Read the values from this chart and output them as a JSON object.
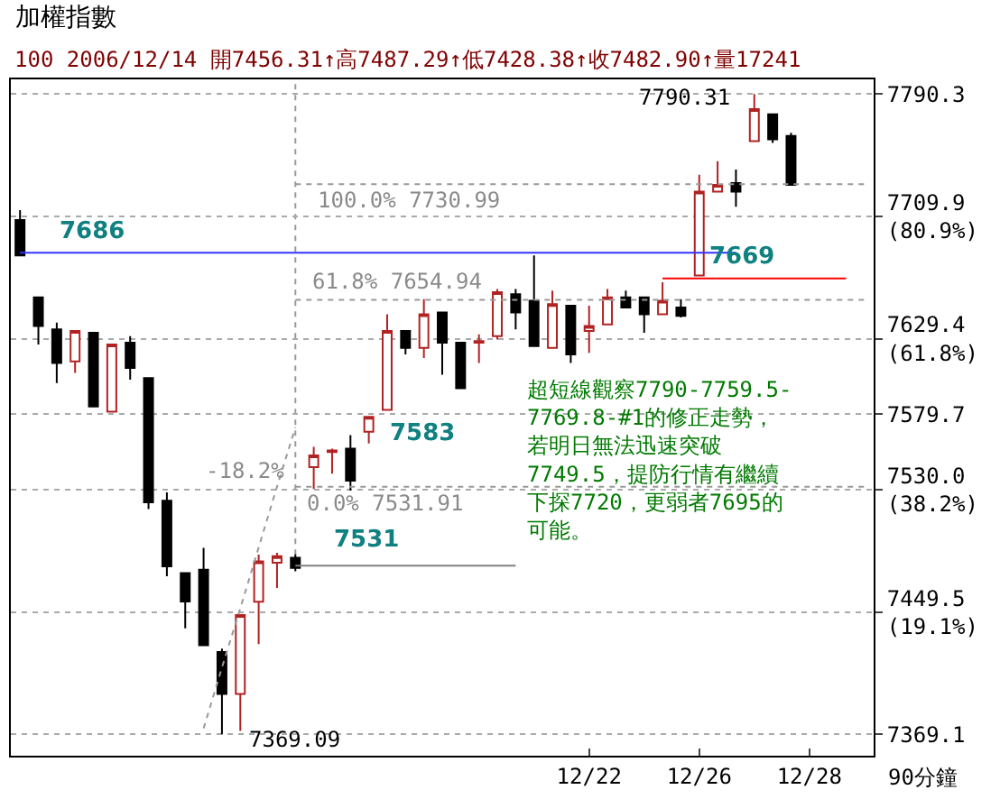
{
  "chart_data": {
    "type": "candlestick",
    "title": "加權指數",
    "subtitle": "100 2006/12/14 開7456.31↑高7487.29↑低7428.38↑收7482.90↑量17241",
    "xlabel": "90分鐘",
    "categories": [
      null,
      null,
      null,
      null,
      null,
      null,
      null,
      null,
      null,
      null,
      null,
      null,
      null,
      null,
      null,
      null,
      null,
      null,
      null,
      null,
      null,
      null,
      null,
      null,
      null,
      null,
      null,
      null,
      null,
      null,
      null,
      "12/22",
      null,
      null,
      null,
      null,
      null,
      "12/26",
      null,
      null,
      null,
      null,
      null,
      "12/28",
      null,
      null,
      null
    ],
    "ohlc": [
      [
        7707.4,
        7714.0,
        7684.2,
        7684.2
      ],
      [
        7656.5,
        7656.5,
        7625.6,
        7637.7
      ],
      [
        7635.5,
        7639.9,
        7600.2,
        7613.4
      ],
      [
        7614.5,
        7634.4,
        7606.8,
        7634.4
      ],
      [
        7633.3,
        7633.3,
        7584.7,
        7584.7
      ],
      [
        7581.4,
        7625.6,
        7581.4,
        7625.6
      ],
      [
        7626.7,
        7631.1,
        7602.4,
        7610.1
      ],
      [
        7603.5,
        7603.5,
        7517.2,
        7521.7
      ],
      [
        7522.8,
        7528.3,
        7473.0,
        7479.6
      ],
      [
        7475.2,
        7475.2,
        7438.8,
        7456.5
      ],
      [
        7477.4,
        7491.8,
        7427.7,
        7427.7
      ],
      [
        7423.3,
        7425.5,
        7369.09,
        7395.6
      ],
      [
        7395.6,
        7447.6,
        7371.3,
        7447.6
      ],
      [
        7456.31,
        7487.29,
        7428.38,
        7482.9
      ],
      [
        7481.9,
        7488.5,
        7465.3,
        7486.3
      ],
      [
        7485.2,
        7487.4,
        7476.3,
        7478.5
      ],
      [
        7544.9,
        7558.2,
        7530.5,
        7552.6
      ],
      [
        7554.8,
        7557.0,
        7540.5,
        7555.9
      ],
      [
        7557.0,
        7565.9,
        7529.4,
        7536.0
      ],
      [
        7568.1,
        7578.0,
        7560.4,
        7578.0
      ],
      [
        7582.5,
        7645.5,
        7582.5,
        7634.4
      ],
      [
        7634.4,
        7634.4,
        7619.0,
        7623.4
      ],
      [
        7623.4,
        7655.4,
        7616.7,
        7645.5
      ],
      [
        7646.6,
        7646.6,
        7605.7,
        7626.7
      ],
      [
        7626.7,
        7626.7,
        7596.8,
        7596.8
      ],
      [
        7626.7,
        7632.2,
        7613.4,
        7627.8
      ],
      [
        7631.1,
        7662.1,
        7628.9,
        7659.9
      ],
      [
        7658.7,
        7662.1,
        7635.5,
        7646.6
      ],
      [
        7654.3,
        7684.2,
        7624.5,
        7624.5
      ],
      [
        7623.4,
        7661.0,
        7623.4,
        7652.1
      ],
      [
        7651.0,
        7651.0,
        7613.4,
        7619.0
      ],
      [
        7634.4,
        7651.0,
        7620.1,
        7637.7
      ],
      [
        7638.8,
        7662.1,
        7638.8,
        7656.5
      ],
      [
        7656.5,
        7661.0,
        7649.9,
        7649.9
      ],
      [
        7656.5,
        7656.5,
        7633.3,
        7645.5
      ],
      [
        7645.5,
        7666.5,
        7645.5,
        7654.3
      ],
      [
        7649.9,
        7655.4,
        7643.3,
        7644.4
      ],
      [
        7670.9,
        7737.2,
        7670.9,
        7726.2
      ],
      [
        7726.2,
        7746.1,
        7726.2,
        7730.6
      ],
      [
        7731.7,
        7740.6,
        7716.2,
        7726.2
      ],
      [
        7759.3,
        7790.31,
        7759.3,
        7780.4
      ],
      [
        7777.0,
        7777.0,
        7758.2,
        7760.5
      ],
      [
        7762.7,
        7764.9,
        7730.6,
        7730.6
      ],
      null,
      null,
      null,
      null
    ],
    "colors": [
      "#000000",
      "#000000",
      "#000000",
      "#b22222",
      "#000000",
      "#b22222",
      "#000000",
      "#000000",
      "#000000",
      "#000000",
      "#000000",
      "#000000",
      "#b22222",
      "#b22222",
      "#b22222",
      "#000000",
      "#b22222",
      "#b22222",
      "#000000",
      "#b22222",
      "#b22222",
      "#000000",
      "#b22222",
      "#000000",
      "#000000",
      "#b22222",
      "#b22222",
      "#000000",
      "#000000",
      "#b22222",
      "#000000",
      "#b22222",
      "#b22222",
      "#000000",
      "#000000",
      "#b22222",
      "#000000",
      "#b22222",
      "#b22222",
      "#000000",
      "#b22222",
      "#000000",
      "#000000",
      null,
      null,
      null,
      null
    ],
    "series": [
      {
        "type": "line",
        "values": [
          7686,
          7686,
          7686,
          7686,
          7686,
          7686,
          7686,
          7686,
          7686,
          7686,
          7686,
          7686,
          7686,
          7686,
          7686,
          7686,
          7686,
          7686,
          7686,
          7686,
          7686,
          7686,
          7686,
          7686,
          7686,
          7686,
          7686,
          7686,
          7686,
          7686,
          7686,
          7686,
          7686,
          7686,
          7686,
          7686,
          7686,
          7686,
          7686,
          7686,
          null,
          null,
          null,
          null,
          null,
          null,
          null
        ],
        "color": "#3333ff",
        "line_style": "solid"
      },
      {
        "type": "line",
        "values": [
          null,
          null,
          null,
          null,
          null,
          null,
          null,
          null,
          null,
          null,
          null,
          null,
          null,
          null,
          null,
          null,
          null,
          null,
          null,
          null,
          null,
          null,
          null,
          null,
          null,
          null,
          null,
          null,
          null,
          null,
          null,
          null,
          null,
          null,
          null,
          7669,
          7669,
          7669,
          7669,
          7669,
          7669,
          7669,
          7669,
          7669,
          7669,
          7669,
          null
        ],
        "color": "#ff0000",
        "line_style": "solid"
      },
      {
        "type": "line",
        "values": [
          null,
          null,
          null,
          null,
          null,
          null,
          null,
          null,
          null,
          null,
          null,
          null,
          null,
          null,
          null,
          7731,
          7731,
          7731,
          7731,
          7731,
          7731,
          7731,
          7731,
          7731,
          7731,
          7731,
          7731,
          7731,
          7731,
          7731,
          7731,
          7731,
          7731,
          7731,
          7731,
          7731,
          7731,
          7731,
          7731,
          7731,
          7731,
          7731,
          7731,
          7731,
          7731,
          7731,
          7731
        ],
        "color": "#999999",
        "line_style": "dotted"
      },
      {
        "type": "line",
        "values": [
          null,
          null,
          null,
          null,
          null,
          null,
          null,
          null,
          null,
          null,
          null,
          null,
          null,
          null,
          null,
          7655,
          7655,
          7655,
          7655,
          7655,
          7655,
          7655,
          7655,
          7655,
          7655,
          7655,
          7655,
          7655,
          7655,
          7655,
          7655,
          7655,
          7655,
          7655,
          7655,
          7655,
          7655,
          7655,
          7655,
          7655,
          7655,
          7655,
          7655,
          7655,
          7655,
          7655,
          7655
        ],
        "color": "#999999",
        "line_style": "dotted"
      },
      {
        "type": "line",
        "values": [
          null,
          null,
          null,
          null,
          null,
          null,
          null,
          null,
          null,
          null,
          null,
          null,
          null,
          null,
          null,
          7532,
          7532,
          7532,
          7532,
          7532,
          7532,
          7532,
          7532,
          7532,
          7532,
          7532,
          7532,
          7532,
          7532,
          7532,
          7532,
          7532,
          7532,
          7532,
          7532,
          7532,
          7532,
          7532,
          7532,
          7532,
          7532,
          7532,
          7532,
          7532,
          7532,
          7532,
          7532
        ],
        "color": "#999999",
        "line_style": "dotted"
      },
      {
        "type": "line",
        "values": [
          null,
          null,
          null,
          null,
          null,
          null,
          null,
          null,
          null,
          null,
          7373,
          7413,
          7452,
          7492,
          7532,
          7571,
          null,
          null,
          null,
          null,
          null,
          null,
          null,
          null,
          null,
          null,
          null,
          null,
          null,
          null,
          null,
          null,
          null,
          null,
          null,
          null,
          null,
          null,
          null,
          null,
          null,
          null,
          null,
          null,
          null,
          null,
          null
        ],
        "color": "#999999",
        "line_style": "dotted"
      },
      {
        "type": "line",
        "values": [
          null,
          null,
          null,
          null,
          null,
          null,
          null,
          null,
          null,
          null,
          null,
          null,
          null,
          null,
          null,
          7480,
          7480,
          7480,
          7480,
          7480,
          7480,
          7480,
          7480,
          7480,
          7480,
          7480,
          7480,
          7480,
          null,
          null,
          null,
          null,
          null,
          null,
          null,
          null,
          null,
          null,
          null,
          null,
          null,
          null,
          null,
          null,
          null,
          null,
          null
        ],
        "color": "#808080",
        "line_style": "solid"
      }
    ],
    "ylim": [
      7355,
      7800
    ],
    "yticks": [
      {
        "value": 7790.3,
        "label": "7790.3"
      },
      {
        "value": 7709.9,
        "label": "7709.9\n(80.9%)"
      },
      {
        "value": 7629.4,
        "label": "7629.4\n(61.8%)"
      },
      {
        "value": 7579.7,
        "label": "7579.7"
      },
      {
        "value": 7530.0,
        "label": "7530.0\n(38.2%)"
      },
      {
        "value": 7449.5,
        "label": "7449.5\n(19.1%)"
      },
      {
        "value": 7369.1,
        "label": "7369.1"
      }
    ],
    "grid": "y",
    "annotations": [
      "7790.31",
      "7369.09",
      "100.0% 7730.99",
      "61.8% 7654.94",
      {
        "text": "0.0% 7531.91",
        "y": 7531.91
      },
      "-18.2%",
      "7686",
      "7669",
      "7583",
      "7531",
      "超短線觀察7790-7759.5-7769.8-#1的修正走勢，若明日無法迅速突破7749.5，提防行情有繼續下探7720，更弱者7695的可能。"
    ]
  }
}
